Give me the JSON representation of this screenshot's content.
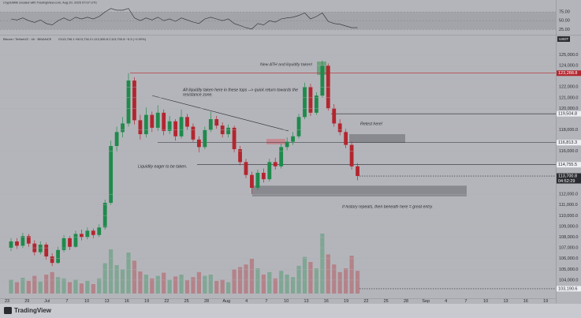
{
  "chart_data": {
    "type": "candlestick",
    "header": "CryptoMilk created with TradingView.com, Aug 20, 2025 07:07 UTC",
    "symbol": "Bitcoin / TetherUS · 4h · BINANCE",
    "ohlc_text": "O113,706.1 H113,734.2 L113,306.8 C113,700.8 −5.3 (−0.00%)",
    "currency": "USDT",
    "countdown": "04:52:29",
    "brand": "TradingView",
    "up_color": "#1f8a4c",
    "down_color": "#b3262f",
    "ylim": [
      102300,
      126800
    ],
    "yticks": [
      {
        "value": 104000,
        "label": "104,000.0"
      },
      {
        "value": 105000,
        "label": "105,000.0"
      },
      {
        "value": 106000,
        "label": "106,000.0"
      },
      {
        "value": 107000,
        "label": "107,000.0"
      },
      {
        "value": 108000,
        "label": "108,000.0"
      },
      {
        "value": 109000,
        "label": "109,000.0"
      },
      {
        "value": 110000,
        "label": "110,000.0"
      },
      {
        "value": 111000,
        "label": "111,000.0"
      },
      {
        "value": 112000,
        "label": "112,000.0"
      },
      {
        "value": 116000,
        "label": "116,000.0"
      },
      {
        "value": 118000,
        "label": "118,000.0"
      },
      {
        "value": 120000,
        "label": "120,000.0"
      },
      {
        "value": 121000,
        "label": "121,000.0"
      },
      {
        "value": 122000,
        "label": "122,000.0"
      },
      {
        "value": 124000,
        "label": "124,000.0"
      },
      {
        "value": 125000,
        "label": "125,000.0"
      }
    ],
    "categories": [
      "23",
      "29",
      "Jul",
      "7",
      "10",
      "13",
      "16",
      "19",
      "22",
      "25",
      "28",
      "Aug",
      "4",
      "7",
      "10",
      "13",
      "16",
      "19",
      "22",
      "25",
      "28",
      "Sep",
      "4",
      "7",
      "10",
      "13",
      "16",
      "19"
    ],
    "candles": [
      [
        107000,
        107900,
        106700,
        107600
      ],
      [
        107600,
        107900,
        106900,
        107200
      ],
      [
        107200,
        108400,
        107000,
        108100
      ],
      [
        108100,
        108300,
        107100,
        107400
      ],
      [
        107400,
        107700,
        106300,
        106600
      ],
      [
        106600,
        107600,
        106400,
        107300
      ],
      [
        107300,
        107500,
        105900,
        106200
      ],
      [
        106200,
        106500,
        105300,
        105600
      ],
      [
        105600,
        107100,
        105500,
        106800
      ],
      [
        106800,
        108200,
        106600,
        107900
      ],
      [
        107900,
        108100,
        106800,
        107100
      ],
      [
        107100,
        108600,
        107000,
        108300
      ],
      [
        108300,
        108700,
        107700,
        108000
      ],
      [
        108000,
        108900,
        107800,
        108600
      ],
      [
        108600,
        108800,
        107900,
        108200
      ],
      [
        108200,
        109200,
        108000,
        108900
      ],
      [
        108900,
        111500,
        108700,
        111200
      ],
      [
        111200,
        117000,
        111000,
        116500
      ],
      [
        116500,
        118300,
        116000,
        117800
      ],
      [
        117800,
        119200,
        117300,
        118600
      ],
      [
        118600,
        123288.8,
        118300,
        122600
      ],
      [
        122600,
        122900,
        118500,
        118900
      ],
      [
        118900,
        119400,
        117100,
        117600
      ],
      [
        117600,
        120100,
        117300,
        119400
      ],
      [
        119400,
        119700,
        117800,
        118200
      ],
      [
        118200,
        120300,
        117900,
        119600
      ],
      [
        119600,
        119900,
        117500,
        117900
      ],
      [
        117900,
        119300,
        117600,
        118800
      ],
      [
        118800,
        119000,
        117000,
        117400
      ],
      [
        117400,
        119900,
        117200,
        119200
      ],
      [
        119200,
        119500,
        118000,
        118300
      ],
      [
        118300,
        118600,
        116900,
        117100
      ],
      [
        117100,
        117400,
        115900,
        116400
      ],
      [
        116400,
        118300,
        116200,
        118000
      ],
      [
        118000,
        119700,
        117800,
        119000
      ],
      [
        119000,
        119300,
        118100,
        118400
      ],
      [
        118400,
        118700,
        117300,
        117600
      ],
      [
        117600,
        118500,
        117300,
        118200
      ],
      [
        118200,
        118400,
        115900,
        116200
      ],
      [
        116200,
        116500,
        114700,
        115000
      ],
      [
        115000,
        115300,
        113500,
        113800
      ],
      [
        113800,
        114100,
        112000,
        112600
      ],
      [
        112600,
        114300,
        112400,
        114000
      ],
      [
        114000,
        114400,
        113100,
        113400
      ],
      [
        113400,
        115300,
        113200,
        115000
      ],
      [
        115000,
        115400,
        114300,
        114600
      ],
      [
        114600,
        116700,
        114400,
        116400
      ],
      [
        116400,
        117300,
        116100,
        116900
      ],
      [
        116900,
        117800,
        116600,
        117400
      ],
      [
        117400,
        119500,
        117200,
        119200
      ],
      [
        119200,
        122400,
        119000,
        122000
      ],
      [
        122000,
        122300,
        119300,
        119600
      ],
      [
        119600,
        121500,
        119400,
        121200
      ],
      [
        121200,
        124470,
        121000,
        124000
      ],
      [
        124000,
        124200,
        119800,
        120000
      ],
      [
        120000,
        120400,
        118300,
        118600
      ],
      [
        118600,
        119000,
        117500,
        117800
      ],
      [
        117800,
        118100,
        116300,
        116600
      ],
      [
        116600,
        116900,
        114300,
        114600
      ],
      [
        114600,
        114900,
        113300,
        113700.8
      ]
    ],
    "volumes": [
      22,
      18,
      25,
      20,
      28,
      19,
      30,
      34,
      26,
      24,
      18,
      22,
      16,
      20,
      15,
      24,
      48,
      70,
      45,
      38,
      65,
      52,
      35,
      30,
      24,
      28,
      33,
      22,
      27,
      30,
      21,
      26,
      34,
      28,
      30,
      20,
      22,
      18,
      38,
      42,
      46,
      55,
      40,
      30,
      34,
      24,
      36,
      30,
      26,
      44,
      58,
      50,
      40,
      95,
      62,
      46,
      34,
      40,
      60,
      36
    ],
    "rsi": [
      55,
      52,
      58,
      50,
      45,
      52,
      42,
      38,
      50,
      58,
      50,
      60,
      55,
      60,
      55,
      62,
      75,
      85,
      80,
      80,
      85,
      58,
      50,
      58,
      52,
      60,
      50,
      55,
      48,
      58,
      52,
      46,
      42,
      55,
      60,
      55,
      50,
      55,
      42,
      36,
      30,
      26,
      42,
      38,
      50,
      46,
      55,
      58,
      60,
      65,
      72,
      55,
      62,
      72,
      48,
      42,
      40,
      35,
      30,
      30
    ],
    "rsi_ylim": [
      10,
      100
    ],
    "rsi_ticks": [
      {
        "value": 75,
        "label": "75.00"
      },
      {
        "value": 50,
        "label": "50.00"
      },
      {
        "value": 25,
        "label": "25.00"
      }
    ],
    "levels": [
      {
        "value": 123288.8,
        "label": "123,288.8",
        "color": "#b3262f"
      },
      {
        "value": 119504.8,
        "label": "119,504.8",
        "color": "#2a2b30"
      },
      {
        "value": 116813.3,
        "label": "116,813.3",
        "color": "#2a2b30"
      },
      {
        "value": 114755.5,
        "label": "114,755.5",
        "color": "#2a2b30"
      },
      {
        "value": 113700.8,
        "label": "113,700.8",
        "color": "#2a2b30"
      },
      {
        "value": 103190.6,
        "label": "103,190.6",
        "color": "#2a2b30"
      }
    ],
    "zones": [
      {
        "low": 116813.3,
        "high": 117600,
        "color": "#7d7f86"
      },
      {
        "low": 111800,
        "high": 112800,
        "color": "#7d7f86"
      },
      {
        "low": 123120,
        "high": 124370,
        "color": "#5f9e72"
      },
      {
        "low": 116650,
        "high": 117160,
        "color": "#c98088"
      }
    ],
    "trendline": [
      121200,
      117900
    ],
    "annotations": [
      "New ATH and liquidity taken!",
      "All liquidity taken here in these tops --> quick return towards the",
      "resistance zone.",
      "Retest here!",
      "Liquidity eager to be taken.",
      "If history repeats, then beneath here = great entry."
    ]
  }
}
